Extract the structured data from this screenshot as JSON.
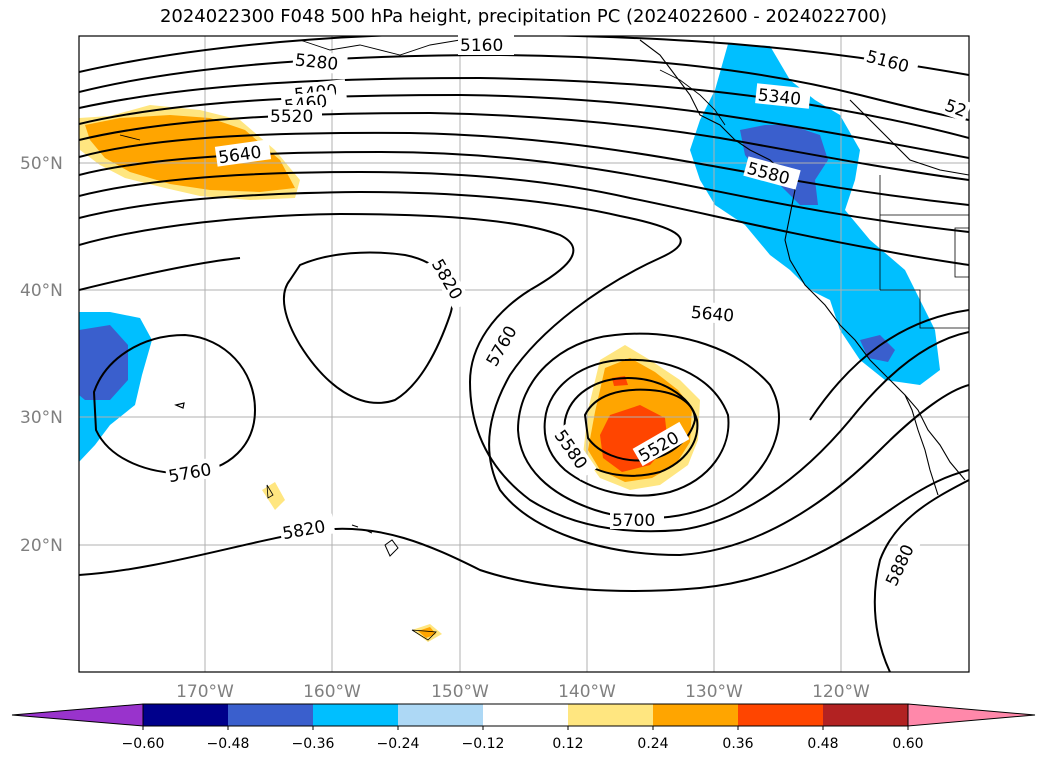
{
  "title": "2024022300 F048 500 hPa height, precipitation PC (2024022600 - 2024022700)",
  "latitude_labels": [
    "50°N",
    "40°N",
    "30°N",
    "20°N"
  ],
  "longitude_labels": [
    "170°W",
    "160°W",
    "150°W",
    "140°W",
    "130°W",
    "120°W"
  ],
  "contour_labels": [
    "5160",
    "5280",
    "5400",
    "5460",
    "5520",
    "5640",
    "5820",
    "5760",
    "5640",
    "5340",
    "5580",
    "5760",
    "5580",
    "5520",
    "5700",
    "5820",
    "5880",
    "5160",
    "52"
  ],
  "colorbar": {
    "ticks": [
      "−0.60",
      "−0.48",
      "−0.36",
      "−0.24",
      "−0.12",
      "0.12",
      "0.24",
      "0.36",
      "0.48",
      "0.60"
    ],
    "colors": [
      "#9933cc",
      "#00008b",
      "#3a5fcd",
      "#00bfff",
      "#add8f5",
      "#ffffff",
      "#ffe680",
      "#ffa500",
      "#ff4500",
      "#b22222",
      "#ff88aa"
    ]
  },
  "shading_colors": {
    "neg_light": "#00bfff",
    "neg_mid": "#3a5fcd",
    "pos_light": "#ffe680",
    "pos_mid": "#ffa500",
    "pos_strong": "#ff4500"
  }
}
